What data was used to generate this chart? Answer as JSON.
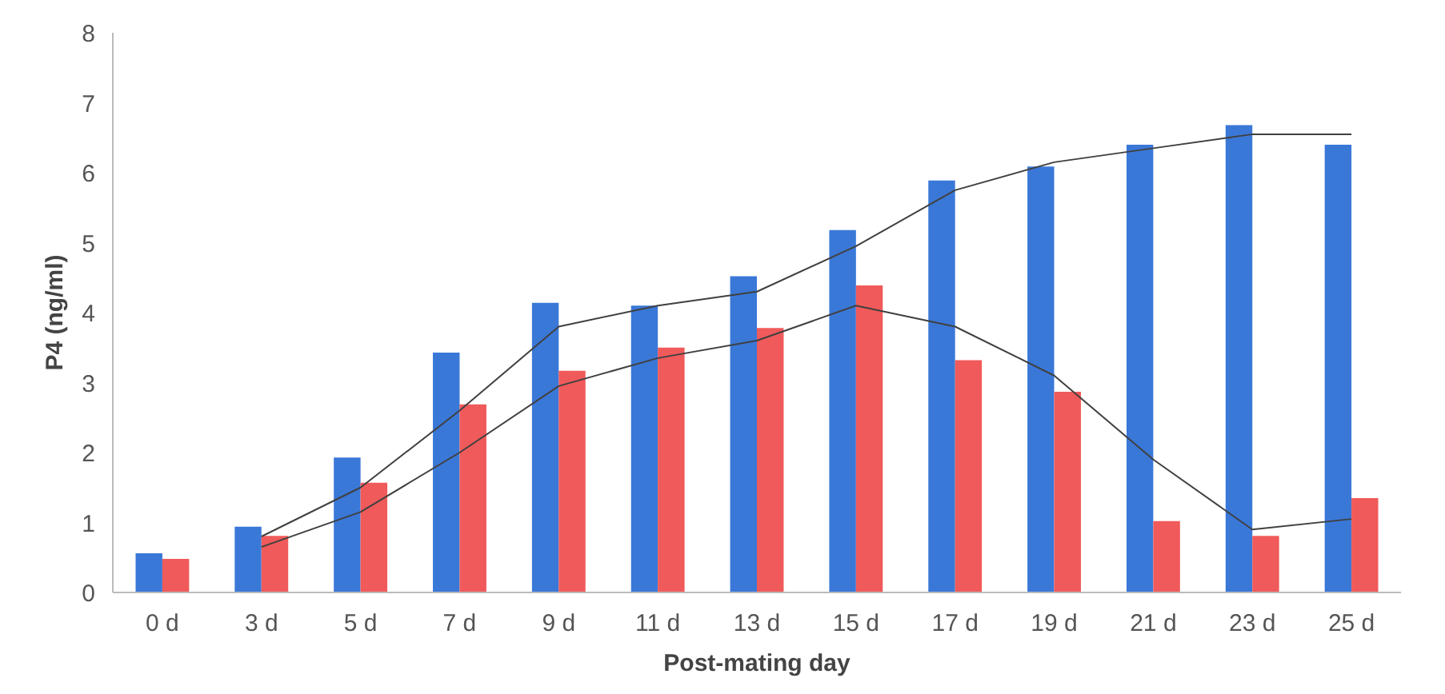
{
  "chart_data": {
    "type": "bar",
    "xlabel": "Post-mating day",
    "ylabel": "P4 (ng/ml)",
    "categories": [
      "0 d",
      "3 d",
      "5 d",
      "7 d",
      "9 d",
      "11 d",
      "13 d",
      "15 d",
      "17 d",
      "19 d",
      "21 d",
      "23 d",
      "25 d"
    ],
    "series": [
      {
        "color": "#3a78d8",
        "values": [
          0.56,
          0.94,
          1.93,
          3.43,
          4.14,
          4.1,
          4.52,
          5.18,
          5.89,
          6.09,
          6.4,
          6.68,
          6.4
        ]
      },
      {
        "color": "#f05a5a",
        "values": [
          0.48,
          0.81,
          1.57,
          2.69,
          3.17,
          3.5,
          3.78,
          4.39,
          3.32,
          2.87,
          1.02,
          0.81,
          1.35
        ]
      },
      {
        "type": "line",
        "color": "#404040",
        "values": [
          null,
          0.8,
          1.5,
          2.6,
          3.8,
          4.1,
          4.3,
          4.95,
          5.75,
          6.15,
          6.35,
          6.55,
          6.55
        ]
      },
      {
        "type": "line",
        "color": "#404040",
        "values": [
          null,
          0.65,
          1.15,
          2.0,
          2.95,
          3.35,
          3.6,
          4.1,
          3.8,
          3.1,
          1.9,
          0.9,
          1.05
        ]
      }
    ],
    "ylim": [
      0,
      8
    ],
    "yticks": [
      0,
      1,
      2,
      3,
      4,
      5,
      6,
      7,
      8
    ],
    "grid": false
  }
}
